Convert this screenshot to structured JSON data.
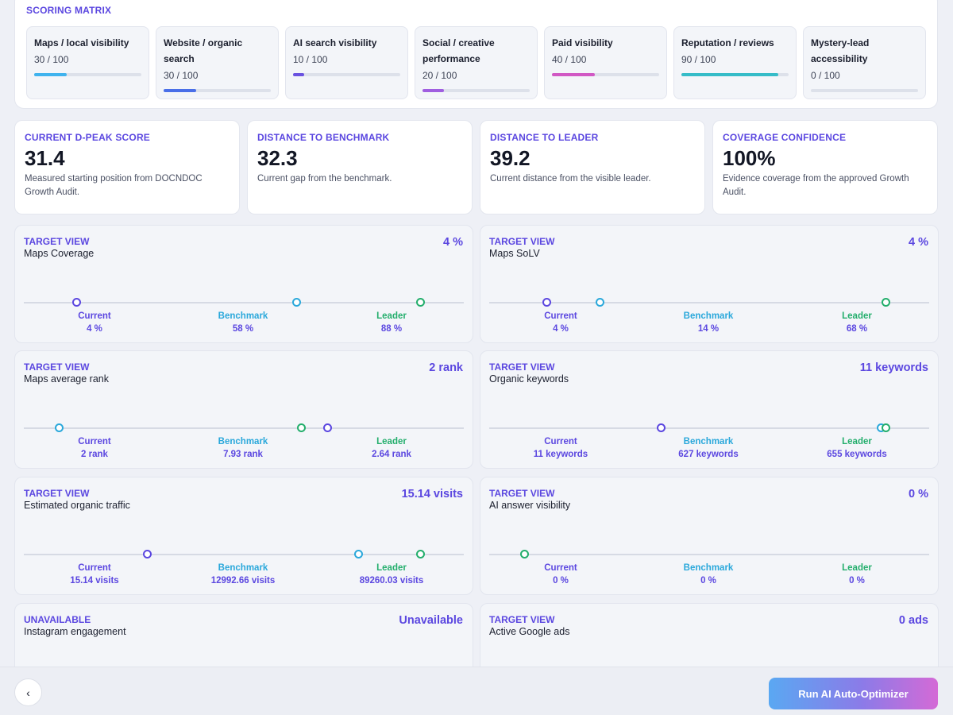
{
  "matrix": {
    "title": "SCORING MATRIX",
    "cards": [
      {
        "label": "Maps / local visibility",
        "score": "30 / 100",
        "progress": 0.3,
        "color": "#3fb3ee"
      },
      {
        "label": "Website / organic search",
        "score": "30 / 100",
        "progress": 0.3,
        "color": "#4a6fe8"
      },
      {
        "label": "AI search visibility",
        "score": "10 / 100",
        "progress": 0.1,
        "color": "#6a52e0"
      },
      {
        "label": "Social / creative performance",
        "score": "20 / 100",
        "progress": 0.2,
        "color": "#a05ee0"
      },
      {
        "label": "Paid visibility",
        "score": "40 / 100",
        "progress": 0.4,
        "color": "#d158c4"
      },
      {
        "label": "Reputation / reviews",
        "score": "90 / 100",
        "progress": 0.9,
        "color": "#35bcc8"
      },
      {
        "label": "Mystery-lead accessibility",
        "score": "0 / 100",
        "progress": 0.0,
        "color": "#8a90a2"
      }
    ]
  },
  "kpis": [
    {
      "title": "CURRENT D-PEAK SCORE",
      "value": "31.4",
      "desc": "Measured starting position from DOCNDOC Growth Audit."
    },
    {
      "title": "DISTANCE TO BENCHMARK",
      "value": "32.3",
      "desc": "Current gap from the benchmark."
    },
    {
      "title": "DISTANCE TO LEADER",
      "value": "39.2",
      "desc": "Current distance from the visible leader."
    },
    {
      "title": "COVERAGE CONFIDENCE",
      "value": "100%",
      "desc": "Evidence coverage from the approved Growth Audit."
    }
  ],
  "labels": {
    "current": "Current",
    "benchmark": "Benchmark",
    "leader": "Leader"
  },
  "targets": [
    {
      "tag": "TARGET VIEW",
      "name": "Maps Coverage",
      "value": "4 %",
      "current": "4 %",
      "benchmark": "58 %",
      "leader": "88 %",
      "pos": {
        "current": 0.12,
        "benchmark": 0.62,
        "leader": 0.9
      }
    },
    {
      "tag": "TARGET VIEW",
      "name": "Maps SoLV",
      "value": "4 %",
      "current": "4 %",
      "benchmark": "14 %",
      "leader": "68 %",
      "pos": {
        "current": 0.13,
        "benchmark": 0.25,
        "leader": 0.9
      }
    },
    {
      "tag": "TARGET VIEW",
      "name": "Maps average rank",
      "value": "2 rank",
      "current": "2 rank",
      "benchmark": "7.93 rank",
      "leader": "2.64 rank",
      "pos": {
        "current": 0.69,
        "benchmark": 0.08,
        "leader": 0.63
      }
    },
    {
      "tag": "TARGET VIEW",
      "name": "Organic keywords",
      "value": "11 keywords",
      "current": "11 keywords",
      "benchmark": "627 keywords",
      "leader": "655 keywords",
      "pos": {
        "current": 0.39,
        "benchmark": 0.89,
        "leader": 0.9
      }
    },
    {
      "tag": "TARGET VIEW",
      "name": "Estimated organic traffic",
      "value": "15.14 visits",
      "current": "15.14 visits",
      "benchmark": "12992.66 visits",
      "leader": "89260.03 visits",
      "pos": {
        "current": 0.28,
        "benchmark": 0.76,
        "leader": 0.9
      }
    },
    {
      "tag": "TARGET VIEW",
      "name": "AI answer visibility",
      "value": "0 %",
      "current": "0 %",
      "benchmark": "0 %",
      "leader": "0 %",
      "pos": {
        "current": 0.08,
        "benchmark": null,
        "leader": null
      }
    },
    {
      "tag": "UNAVAILABLE",
      "name": "Instagram engagement",
      "value": "Unavailable"
    },
    {
      "tag": "TARGET VIEW",
      "name": "Active Google ads",
      "value": "0 ads"
    }
  ],
  "footer": {
    "back_label": "‹",
    "run_label": "Run AI Auto-Optimizer"
  }
}
